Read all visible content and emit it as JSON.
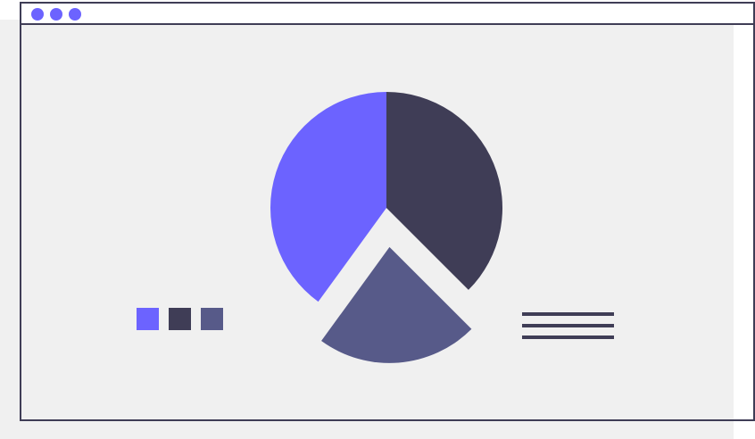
{
  "window": {
    "controls": [
      {
        "name": "window-dot-1",
        "color": "#6c63ff"
      },
      {
        "name": "window-dot-2",
        "color": "#6c63ff"
      },
      {
        "name": "window-dot-3",
        "color": "#6c63ff"
      }
    ],
    "frame_color": "#3f3d56",
    "background": "#f0f0f0"
  },
  "legend": {
    "swatches": [
      "#6c63ff",
      "#3f3d56",
      "#575a89"
    ]
  },
  "text_lines": {
    "count": 3,
    "color": "#3f3d56"
  },
  "chart_data": {
    "type": "pie",
    "slices": [
      {
        "value": 37.5,
        "color": "#3f3d56",
        "exploded": false
      },
      {
        "value": 22.5,
        "color": "#575a89",
        "exploded": true
      },
      {
        "value": 40,
        "color": "#6c63ff",
        "exploded": false
      }
    ]
  }
}
